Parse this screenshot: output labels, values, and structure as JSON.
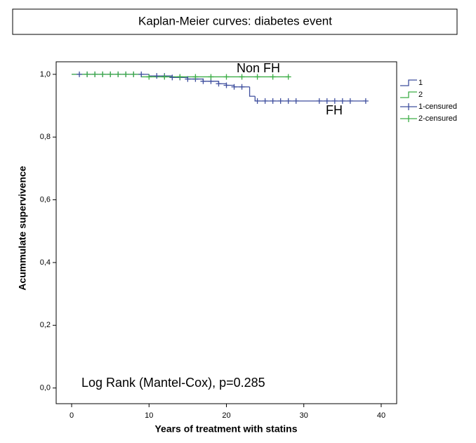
{
  "chart_data": {
    "type": "step",
    "title": "Kaplan-Meier curves: diabetes event",
    "xlabel": "Years of treatment with statins",
    "ylabel": "Acummulate supervivence",
    "annotations": [
      "Non FH",
      "FH",
      "Log Rank (Mantel-Cox), p=0.285"
    ],
    "xlim": [
      -2,
      42
    ],
    "xticks": [
      0,
      10,
      20,
      30,
      40
    ],
    "ylim": [
      -0.05,
      1.04
    ],
    "yticks": [
      {
        "value": 0,
        "label": "0,0"
      },
      {
        "value": 0.2,
        "label": "0,2"
      },
      {
        "value": 0.4,
        "label": "0,4"
      },
      {
        "value": 0.6,
        "label": "0,6"
      },
      {
        "value": 0.8,
        "label": "0,8"
      },
      {
        "value": 1,
        "label": "1,0"
      }
    ],
    "legend": "right",
    "series": [
      {
        "name": "1",
        "color": "#3f4f9e",
        "kind": "step",
        "x": [
          0,
          10,
          13,
          15,
          17,
          19,
          20,
          21,
          23,
          23.7,
          38
        ],
        "values": [
          1,
          0.995,
          0.99,
          0.985,
          0.978,
          0.97,
          0.965,
          0.96,
          0.93,
          0.915,
          0.915
        ]
      },
      {
        "name": "2",
        "color": "#3cae46",
        "kind": "step",
        "x": [
          0,
          9,
          28
        ],
        "values": [
          1,
          0.992,
          0.992
        ]
      },
      {
        "name": "1-censured",
        "color": "#3f4f9e",
        "kind": "censored",
        "x": [
          1,
          2,
          3,
          4,
          5,
          6,
          7,
          8,
          9,
          11,
          12,
          13,
          14,
          15,
          16,
          17,
          18,
          19,
          20,
          21,
          22,
          24,
          25,
          26,
          27,
          28,
          29,
          32,
          33,
          34,
          35,
          36,
          38
        ],
        "values": [
          1,
          1,
          1,
          1,
          1,
          1,
          1,
          1,
          1,
          0.995,
          0.995,
          0.99,
          0.99,
          0.985,
          0.985,
          0.978,
          0.978,
          0.97,
          0.965,
          0.96,
          0.96,
          0.915,
          0.915,
          0.915,
          0.915,
          0.915,
          0.915,
          0.915,
          0.915,
          0.915,
          0.915,
          0.915,
          0.915
        ]
      },
      {
        "name": "2-censured",
        "color": "#3cae46",
        "kind": "censored",
        "x": [
          2,
          3,
          4,
          5,
          6,
          7,
          8,
          10,
          12,
          14,
          16,
          18,
          20,
          22,
          24,
          26,
          28
        ],
        "values": [
          1,
          1,
          1,
          1,
          1,
          1,
          1,
          0.992,
          0.992,
          0.992,
          0.992,
          0.992,
          0.992,
          0.992,
          0.992,
          0.992,
          0.992
        ]
      }
    ]
  }
}
